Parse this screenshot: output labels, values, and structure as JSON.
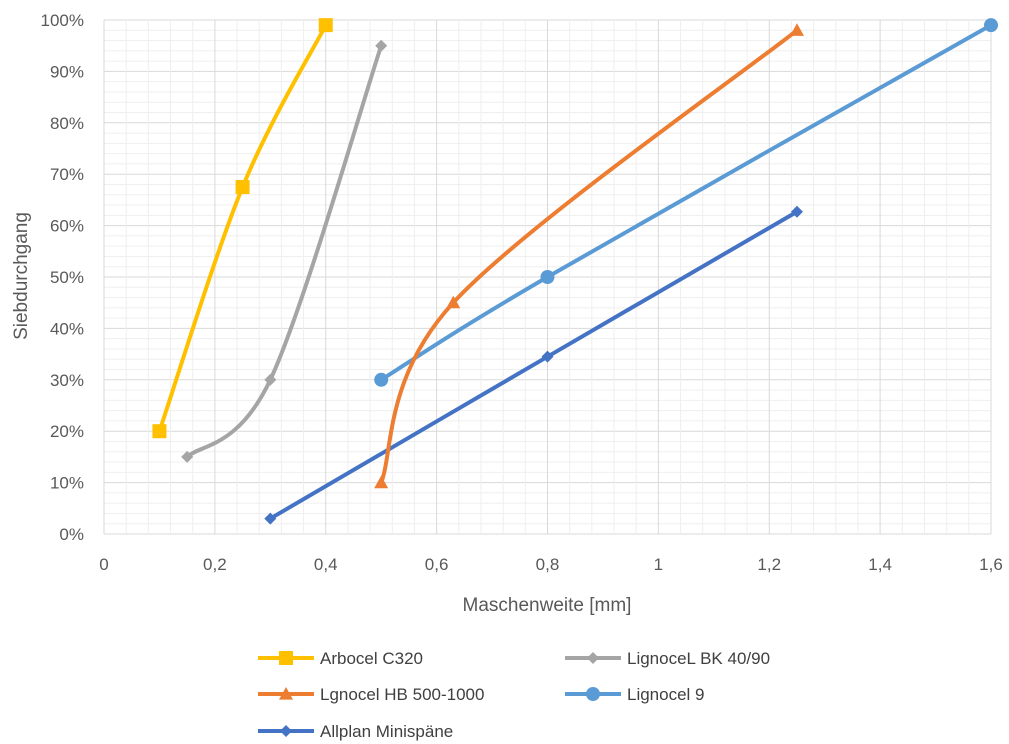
{
  "chart_data": {
    "type": "line",
    "xlabel": "Maschenweite [mm]",
    "ylabel": "Siebdurchgang",
    "xlim": [
      0,
      1.6
    ],
    "ylim": [
      0,
      100
    ],
    "x_ticks": [
      "0",
      "0,2",
      "0,4",
      "0,6",
      "0,8",
      "1",
      "1,2",
      "1,4",
      "1,6"
    ],
    "y_ticks": [
      "0%",
      "10%",
      "20%",
      "30%",
      "40%",
      "50%",
      "60%",
      "70%",
      "80%",
      "90%",
      "100%"
    ],
    "grid": true,
    "legend_position": "bottom",
    "series": [
      {
        "name": "Arbocel C320",
        "color": "#FFC000",
        "marker": "square",
        "points": [
          [
            0.1,
            20
          ],
          [
            0.25,
            67.5
          ],
          [
            0.4,
            99
          ]
        ]
      },
      {
        "name": "LignoceL BK 40/90",
        "color": "#A5A5A5",
        "marker": "diamond",
        "points": [
          [
            0.15,
            15
          ],
          [
            0.3,
            30
          ],
          [
            0.5,
            95
          ]
        ]
      },
      {
        "name": "Lgnocel HB 500-1000",
        "color": "#ED7D31",
        "marker": "triangle",
        "points": [
          [
            0.5,
            10
          ],
          [
            0.63,
            45
          ],
          [
            1.25,
            98
          ]
        ]
      },
      {
        "name": "Lignocel 9",
        "color": "#5B9BD5",
        "marker": "circle",
        "points": [
          [
            0.5,
            30
          ],
          [
            0.8,
            50
          ],
          [
            1.6,
            99
          ]
        ]
      },
      {
        "name": "Allplan Minispäne",
        "color": "#4472C4",
        "marker": "diamond",
        "points": [
          [
            0.3,
            3
          ],
          [
            0.8,
            34.5
          ],
          [
            1.25,
            62.7
          ]
        ]
      }
    ]
  }
}
